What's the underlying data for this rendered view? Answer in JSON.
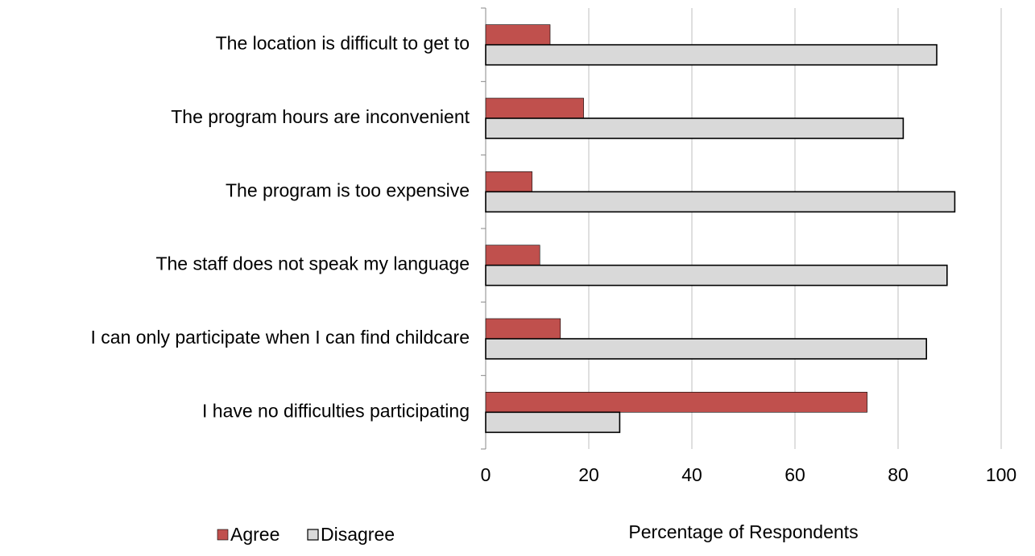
{
  "chart_data": {
    "type": "barh",
    "categories": [
      "The location is difficult to get to",
      "The program hours are inconvenient",
      "The program is too expensive",
      "The staff does not speak my language",
      "I can only participate when I can find childcare",
      "I have no difficulties participating"
    ],
    "series": [
      {
        "name": "Agree",
        "color": "#c0504d",
        "values": [
          12.5,
          19,
          9,
          10.5,
          14.5,
          74
        ]
      },
      {
        "name": "Disagree",
        "color": "#d9d9d9",
        "values": [
          87.5,
          81,
          91,
          89.5,
          85.5,
          26
        ]
      }
    ],
    "xlim": [
      0,
      100
    ],
    "xticks": [
      0,
      20,
      40,
      60,
      80,
      100
    ],
    "grid": true,
    "xlabel": "Percentage of Respondents",
    "legend": "bottom-left"
  }
}
